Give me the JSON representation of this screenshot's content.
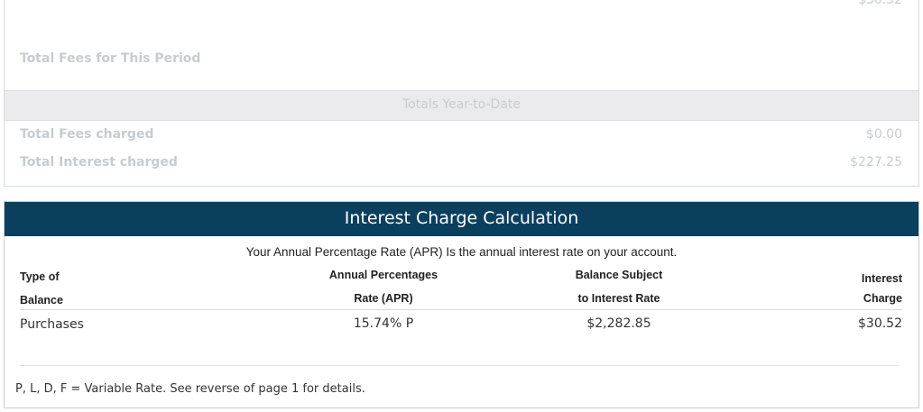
{
  "summary": {
    "cropped_amount": "$30.52",
    "period_fees_label": "Total Fees for This Period",
    "ytd_heading": "Totals Year-to-Date",
    "ytd_rows": [
      [
        "Total Fees charged",
        "$0.00"
      ],
      [
        "Total Interest charged",
        "$227.25"
      ]
    ]
  },
  "interest": {
    "title": "Interest Charge Calculation",
    "subtitle": "Your Annual Percentage Rate (APR) Is the annual interest rate on your account.",
    "columns": [
      [
        "Type of",
        "Balance"
      ],
      [
        "Annual Percentages",
        "Rate (APR)"
      ],
      [
        "Balance Subject",
        "to Interest Rate"
      ],
      [
        "Interest",
        "Charge"
      ]
    ],
    "rows": [
      [
        "Purchases",
        "15.74% P",
        "$2,282.85",
        "$30.52"
      ]
    ],
    "footnote": "P, L, D, F = Variable Rate. See reverse of page 1 for details."
  }
}
